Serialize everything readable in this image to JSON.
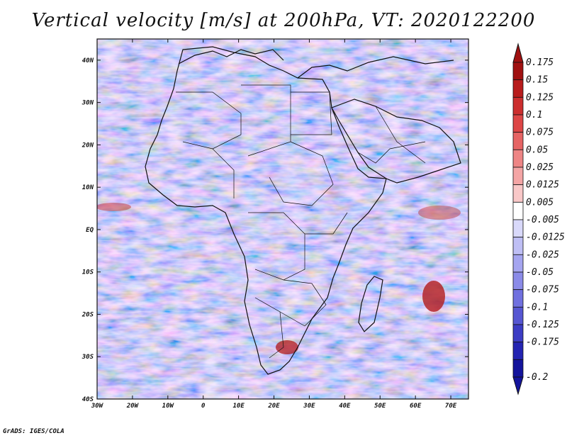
{
  "title": "Vertical velocity [m/s] at 200hPa, VT: 2020122200",
  "credit": "GrADS: IGES/COLA",
  "map": {
    "lon_range": [
      -30,
      75
    ],
    "lat_range": [
      -40,
      45
    ],
    "lat_labels": [
      "40N",
      "30N",
      "20N",
      "10N",
      "EQ",
      "10S",
      "20S",
      "30S",
      "40S"
    ],
    "lon_labels": [
      "30W",
      "20W",
      "10W",
      "0",
      "10E",
      "20E",
      "30E",
      "40E",
      "50E",
      "60E",
      "70E"
    ],
    "region": "Africa, Arabian Peninsula, Indian Ocean"
  },
  "colorbar": {
    "levels": [
      "0.175",
      "0.15",
      "0.125",
      "0.1",
      "0.075",
      "0.05",
      "0.025",
      "0.0125",
      "0.005",
      "-0.005",
      "-0.0125",
      "-0.025",
      "-0.05",
      "-0.075",
      "-0.1",
      "-0.125",
      "-0.175",
      "-0.2"
    ],
    "colors": [
      "#a01010",
      "#b81c1c",
      "#cc2e2e",
      "#dd4646",
      "#e66464",
      "#ee8585",
      "#f4a5a5",
      "#f9c8c8",
      "#ffffff",
      "#d9d9fa",
      "#bfbff5",
      "#a5a5f0",
      "#8b8be8",
      "#7070df",
      "#5656d2",
      "#3c3cc4",
      "#2424b2",
      "#14149c"
    ]
  }
}
